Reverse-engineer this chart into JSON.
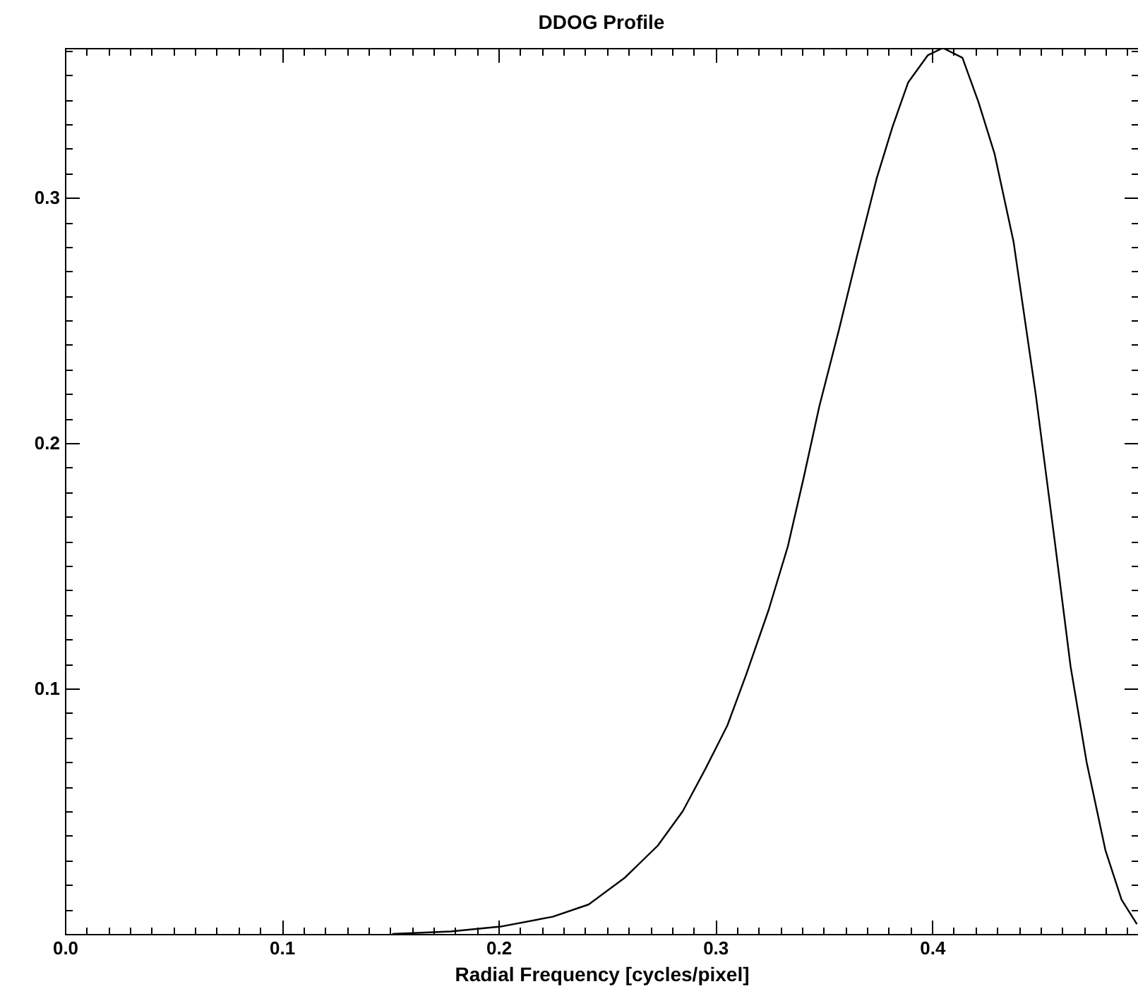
{
  "chart_data": {
    "type": "line",
    "title": "DDOG Profile",
    "xlabel": "Radial Frequency [cycles/pixel]",
    "x": [
      0.151,
      0.178,
      0.201,
      0.225,
      0.2416,
      0.2584,
      0.2735,
      0.285,
      0.2953,
      0.3056,
      0.3144,
      0.3246,
      0.3335,
      0.3408,
      0.348,
      0.357,
      0.3656,
      0.3745,
      0.3818,
      0.389,
      0.398,
      0.405,
      0.414,
      0.4214,
      0.4288,
      0.4376,
      0.4478,
      0.4566,
      0.4639,
      0.4713,
      0.48,
      0.4874,
      0.4945
    ],
    "series": [
      {
        "color": "#000000",
        "values": [
          0.0,
          0.001,
          0.003,
          0.007,
          0.012,
          0.023,
          0.036,
          0.05,
          0.067,
          0.085,
          0.106,
          0.132,
          0.158,
          0.186,
          0.215,
          0.246,
          0.277,
          0.308,
          0.329,
          0.347,
          0.358,
          0.361,
          0.357,
          0.339,
          0.318,
          0.282,
          0.22,
          0.16,
          0.109,
          0.07,
          0.034,
          0.014,
          0.004
        ]
      }
    ],
    "xlim": [
      0,
      0.495
    ],
    "ylim": [
      0,
      0.361
    ],
    "xticks": [
      {
        "value": 0,
        "label": "0.0"
      },
      {
        "value": 0.01,
        "label": null
      },
      {
        "value": 0.02,
        "label": null
      },
      {
        "value": 0.03,
        "label": null
      },
      {
        "value": 0.04,
        "label": null
      },
      {
        "value": 0.05,
        "label": null
      },
      {
        "value": 0.06,
        "label": null
      },
      {
        "value": 0.07,
        "label": null
      },
      {
        "value": 0.08,
        "label": null
      },
      {
        "value": 0.09,
        "label": null
      },
      0.1,
      {
        "value": 0.11,
        "label": null
      },
      {
        "value": 0.12,
        "label": null
      },
      {
        "value": 0.13,
        "label": null
      },
      {
        "value": 0.14,
        "label": null
      },
      {
        "value": 0.15,
        "label": null
      },
      {
        "value": 0.16,
        "label": null
      },
      {
        "value": 0.17,
        "label": null
      },
      {
        "value": 0.18,
        "label": null
      },
      {
        "value": 0.19,
        "label": null
      },
      0.2,
      {
        "value": 0.21,
        "label": null
      },
      {
        "value": 0.22,
        "label": null
      },
      {
        "value": 0.23,
        "label": null
      },
      {
        "value": 0.24,
        "label": null
      },
      {
        "value": 0.25,
        "label": null
      },
      {
        "value": 0.26,
        "label": null
      },
      {
        "value": 0.27,
        "label": null
      },
      {
        "value": 0.28,
        "label": null
      },
      {
        "value": 0.29,
        "label": null
      },
      0.3,
      {
        "value": 0.31,
        "label": null
      },
      {
        "value": 0.32,
        "label": null
      },
      {
        "value": 0.33,
        "label": null
      },
      {
        "value": 0.34,
        "label": null
      },
      {
        "value": 0.35,
        "label": null
      },
      {
        "value": 0.36,
        "label": null
      },
      {
        "value": 0.37,
        "label": null
      },
      {
        "value": 0.38,
        "label": null
      },
      {
        "value": 0.39,
        "label": null
      },
      0.4,
      {
        "value": 0.41,
        "label": null
      },
      {
        "value": 0.42,
        "label": null
      },
      {
        "value": 0.43,
        "label": null
      },
      {
        "value": 0.44,
        "label": null
      },
      {
        "value": 0.45,
        "label": null
      },
      {
        "value": 0.46,
        "label": null
      },
      {
        "value": 0.47,
        "label": null
      },
      {
        "value": 0.48,
        "label": null
      },
      {
        "value": 0.49,
        "label": null
      }
    ],
    "yticks": [
      {
        "value": 0.01,
        "label": null
      },
      {
        "value": 0.02,
        "label": null
      },
      {
        "value": 0.03,
        "label": null
      },
      {
        "value": 0.04,
        "label": null
      },
      {
        "value": 0.05,
        "label": null
      },
      {
        "value": 0.06,
        "label": null
      },
      {
        "value": 0.07,
        "label": null
      },
      {
        "value": 0.08,
        "label": null
      },
      {
        "value": 0.09,
        "label": null
      },
      0.1,
      {
        "value": 0.11,
        "label": null
      },
      {
        "value": 0.12,
        "label": null
      },
      {
        "value": 0.13,
        "label": null
      },
      {
        "value": 0.14,
        "label": null
      },
      {
        "value": 0.15,
        "label": null
      },
      {
        "value": 0.16,
        "label": null
      },
      {
        "value": 0.17,
        "label": null
      },
      {
        "value": 0.18,
        "label": null
      },
      {
        "value": 0.19,
        "label": null
      },
      0.2,
      {
        "value": 0.21,
        "label": null
      },
      {
        "value": 0.22,
        "label": null
      },
      {
        "value": 0.23,
        "label": null
      },
      {
        "value": 0.24,
        "label": null
      },
      {
        "value": 0.25,
        "label": null
      },
      {
        "value": 0.26,
        "label": null
      },
      {
        "value": 0.27,
        "label": null
      },
      {
        "value": 0.28,
        "label": null
      },
      {
        "value": 0.29,
        "label": null
      },
      0.3,
      {
        "value": 0.31,
        "label": null
      },
      {
        "value": 0.32,
        "label": null
      },
      {
        "value": 0.33,
        "label": null
      },
      {
        "value": 0.34,
        "label": null
      },
      {
        "value": 0.35,
        "label": null
      },
      {
        "value": 0.36,
        "label": null
      }
    ],
    "grid": false,
    "legend": false
  }
}
